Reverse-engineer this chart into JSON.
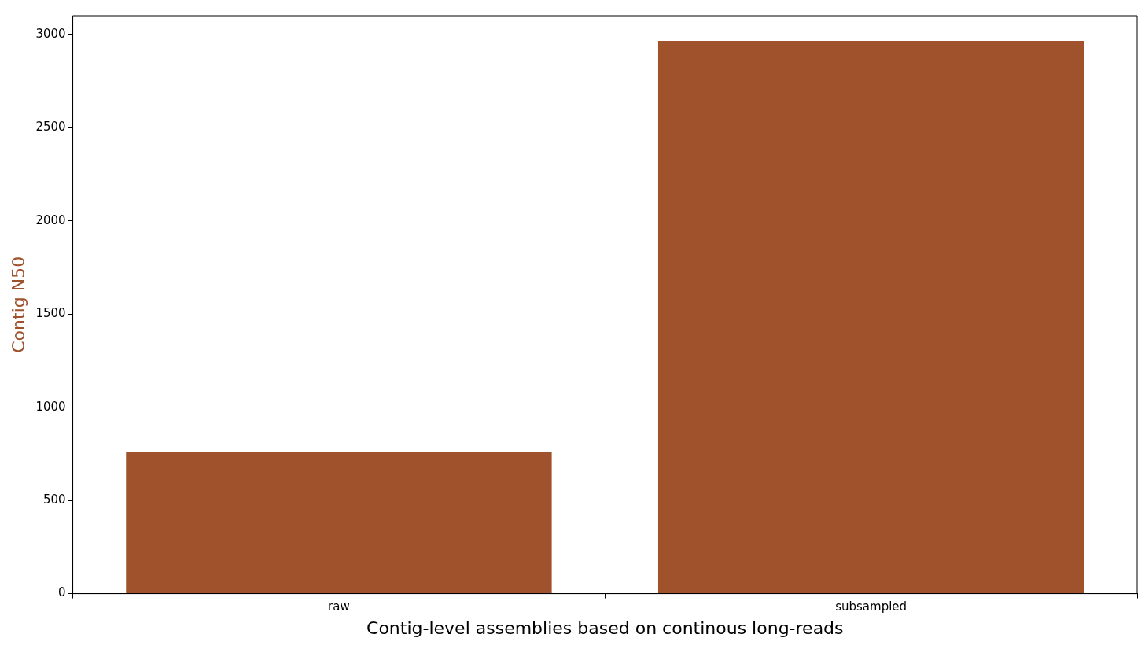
{
  "chart_data": {
    "type": "bar",
    "categories": [
      "raw",
      "subsampled"
    ],
    "values": [
      760,
      2965
    ],
    "color": "#a0522d",
    "ylabel": "Contig N50",
    "xlabel": "Contig-level assemblies based on continous long-reads",
    "ylim": [
      0,
      3100
    ],
    "yticks": [
      0,
      500,
      1000,
      1500,
      2000,
      2500,
      3000
    ],
    "grid": false,
    "legend": false
  }
}
